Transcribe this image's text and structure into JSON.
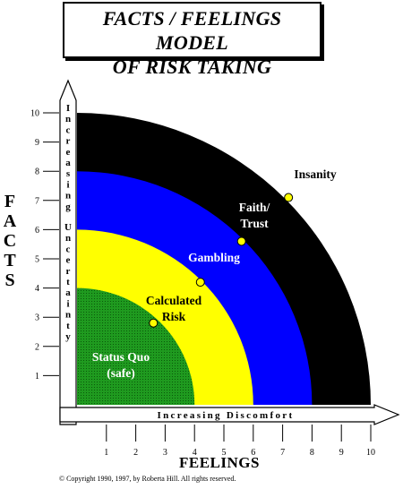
{
  "title": {
    "line1": "FACTS / FEELINGS MODEL",
    "line2": "OF RISK TAKING"
  },
  "y_axis": {
    "title_letters": [
      "F",
      "A",
      "C",
      "T",
      "S"
    ],
    "inner_label": "Increasing Uncertainty",
    "ticks": [
      "1",
      "2",
      "3",
      "4",
      "5",
      "6",
      "7",
      "8",
      "9",
      "10"
    ]
  },
  "x_axis": {
    "title": "FEELINGS",
    "inner_label": "Increasing Discomfort",
    "ticks": [
      "1",
      "2",
      "3",
      "4",
      "5",
      "6",
      "7",
      "8",
      "9",
      "10"
    ]
  },
  "zones": [
    {
      "id": "status-quo",
      "label_lines": [
        "Status Quo",
        "(safe)"
      ],
      "outer_radius": 4,
      "color": "#1f9a1f"
    },
    {
      "id": "calculated-risk",
      "label_lines": [
        "Calculated",
        "Risk"
      ],
      "outer_radius": 6,
      "color": "#ffff00"
    },
    {
      "id": "gambling",
      "label_lines": [
        "Gambling"
      ],
      "outer_radius": 8,
      "color": "#0000ff"
    },
    {
      "id": "faith-trust",
      "label_lines": [
        "Faith/",
        "Trust"
      ],
      "outer_radius": 10,
      "color": "#000000"
    },
    {
      "id": "insanity",
      "label_lines": [
        "Insanity"
      ]
    }
  ],
  "boundary_points": [
    {
      "zone": "status-quo",
      "x": 2.6,
      "y": 2.8
    },
    {
      "zone": "calculated-risk",
      "x": 4.2,
      "y": 4.2
    },
    {
      "zone": "gambling",
      "x": 5.6,
      "y": 5.6
    },
    {
      "zone": "faith-trust",
      "x": 7.2,
      "y": 7.1
    }
  ],
  "colors": {
    "marker": "#ffff00",
    "axis_fill": "#ffffff",
    "label_white": "#ffffff"
  },
  "copyright": "© Copyright 1990, 1997, by Roberta Hill. All rights reserved."
}
